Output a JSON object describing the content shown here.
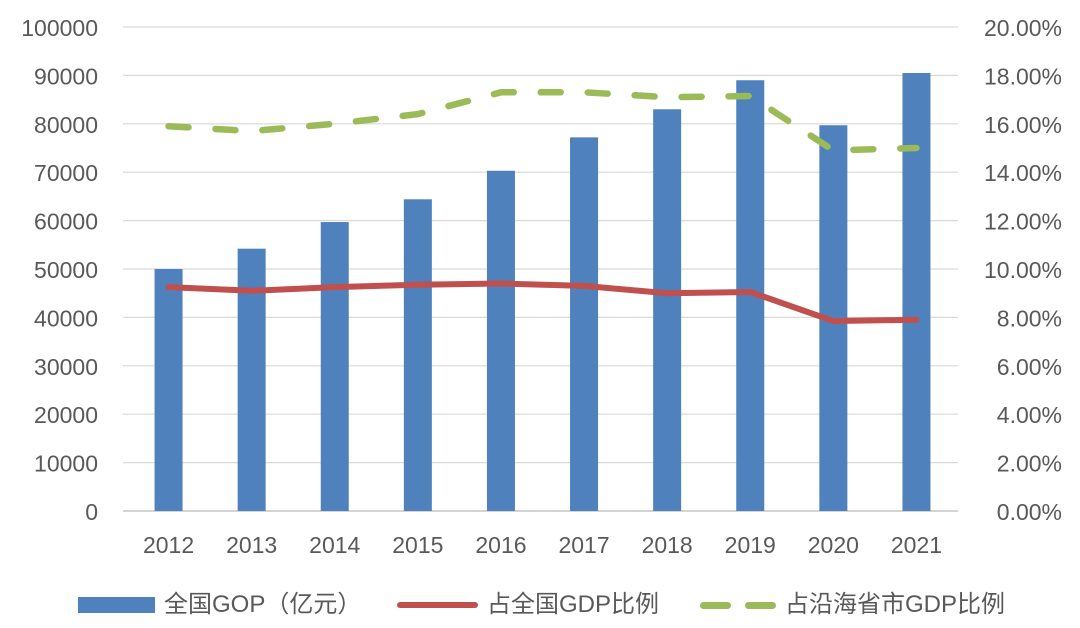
{
  "chart_data": {
    "type": "bar",
    "subtype": "combo-bar-line-dual-axis",
    "title": "",
    "categories": [
      "2012",
      "2013",
      "2014",
      "2015",
      "2016",
      "2017",
      "2018",
      "2019",
      "2020",
      "2021"
    ],
    "series": [
      {
        "name": "全国GOP（亿元）",
        "type": "bar",
        "axis": "left",
        "color": "#4F81BD",
        "values": [
          50000,
          54200,
          59700,
          64400,
          70300,
          77200,
          83000,
          89000,
          79700,
          90500
        ]
      },
      {
        "name": "占全国GDP比例",
        "type": "line",
        "line_style": "solid",
        "axis": "right",
        "color": "#C0504D",
        "values": [
          9.25,
          9.1,
          9.25,
          9.35,
          9.4,
          9.3,
          9.0,
          9.05,
          7.85,
          7.9
        ]
      },
      {
        "name": "占沿海省市GDP比例",
        "type": "line",
        "line_style": "dashed",
        "axis": "right",
        "color": "#9BBB59",
        "values": [
          15.9,
          15.7,
          16.0,
          16.4,
          17.3,
          17.3,
          17.1,
          17.15,
          14.9,
          15.0
        ]
      }
    ],
    "left_axis": {
      "min": 0,
      "max": 100000,
      "step": 10000,
      "tick_labels": [
        "0",
        "10000",
        "20000",
        "30000",
        "40000",
        "50000",
        "60000",
        "70000",
        "80000",
        "90000",
        "100000"
      ]
    },
    "right_axis": {
      "min": 0,
      "max": 20,
      "step": 2,
      "tick_labels": [
        "0.00%",
        "2.00%",
        "4.00%",
        "6.00%",
        "8.00%",
        "10.00%",
        "12.00%",
        "14.00%",
        "16.00%",
        "18.00%",
        "20.00%"
      ]
    },
    "grid": true,
    "legend_position": "bottom"
  },
  "legend": {
    "items": [
      {
        "label": "全国GOP（亿元）",
        "swatch": "bar",
        "color": "#4F81BD"
      },
      {
        "label": "占全国GDP比例",
        "swatch": "line-solid",
        "color": "#C0504D"
      },
      {
        "label": "占沿海省市GDP比例",
        "swatch": "line-dashed",
        "color": "#9BBB59"
      }
    ]
  },
  "style": {
    "text_color": "#595959",
    "gridline_color": "#D9D9D9",
    "axis_line_color": "#C6C6C6",
    "background": "#FFFFFF"
  }
}
